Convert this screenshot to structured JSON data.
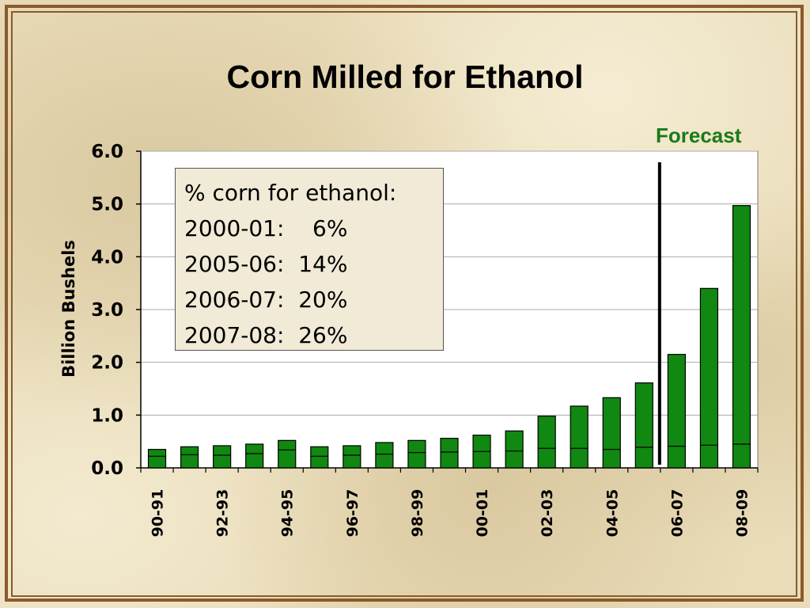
{
  "chart_data": {
    "type": "bar",
    "title": "Corn Milled for Ethanol",
    "ylabel": "Billion Bushels",
    "xlabel": "",
    "ylim": [
      0,
      6
    ],
    "yticks": [
      "0.0",
      "1.0",
      "2.0",
      "3.0",
      "4.0",
      "5.0",
      "6.0"
    ],
    "categories": [
      "90-91",
      "91-92",
      "92-93",
      "93-94",
      "94-95",
      "95-96",
      "96-97",
      "97-98",
      "98-99",
      "99-00",
      "00-01",
      "01-02",
      "02-03",
      "03-04",
      "04-05",
      "05-06",
      "06-07",
      "07-08",
      "08-09"
    ],
    "visible_xtick_labels": [
      "90-91",
      "92-93",
      "94-95",
      "96-97",
      "98-99",
      "00-01",
      "02-03",
      "04-05",
      "06-07",
      "08-09"
    ],
    "values": [
      0.35,
      0.4,
      0.42,
      0.45,
      0.52,
      0.4,
      0.42,
      0.48,
      0.52,
      0.56,
      0.62,
      0.7,
      0.98,
      1.17,
      1.33,
      1.61,
      2.15,
      3.4,
      4.97
    ],
    "inner_marks": [
      0.22,
      0.25,
      0.24,
      0.27,
      0.34,
      0.22,
      0.24,
      0.26,
      0.29,
      0.3,
      0.31,
      0.32,
      0.37,
      0.37,
      0.35,
      0.39,
      0.41,
      0.43,
      0.45
    ],
    "forecast_label": "Forecast",
    "grid": true,
    "bar_color": "#118811"
  },
  "annotation": {
    "lines": [
      "% corn for ethanol:",
      "2000-01:    6%",
      "2005-06:  14%",
      "2006-07:  20%",
      "2007-08:  26%"
    ]
  }
}
